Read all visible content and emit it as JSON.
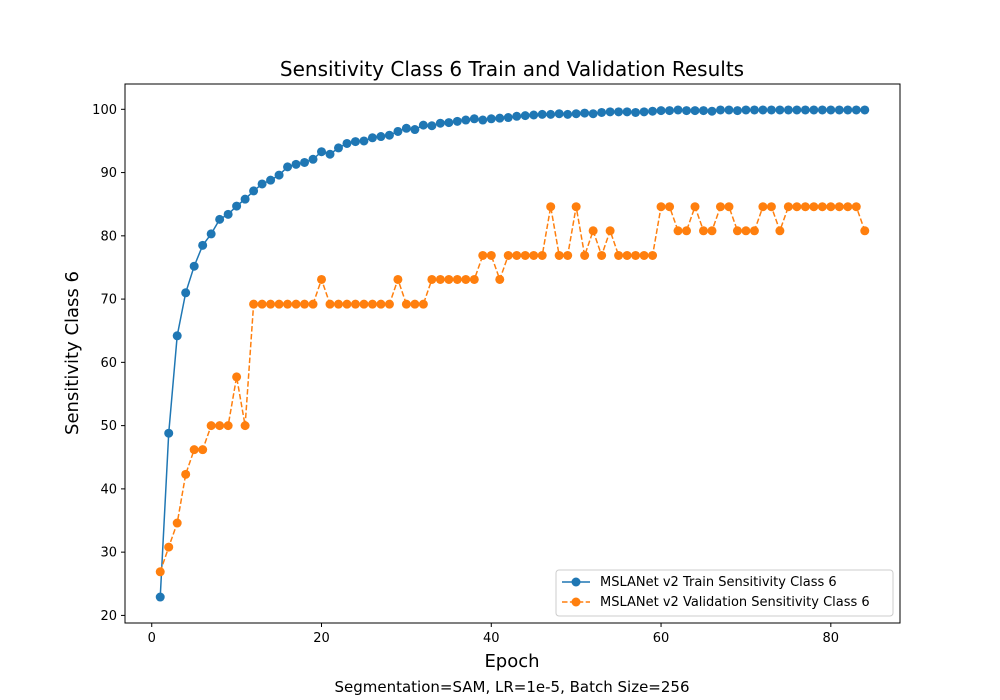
{
  "chart_data": {
    "type": "line",
    "title": "Sensitivity Class 6 Train and Validation Results",
    "xlabel": "Epoch",
    "ylabel": "Sensitivity Class 6",
    "caption": "Segmentation=SAM, LR=1e-5, Batch Size=256",
    "xlim": [
      -3.15,
      88.15
    ],
    "ylim": [
      18.8,
      104.0
    ],
    "xticks": [
      0,
      20,
      40,
      60,
      80
    ],
    "yticks": [
      20,
      30,
      40,
      50,
      60,
      70,
      80,
      90,
      100
    ],
    "grid": false,
    "legend_position": "lower-right",
    "x": [
      1,
      2,
      3,
      4,
      5,
      6,
      7,
      8,
      9,
      10,
      11,
      12,
      13,
      14,
      15,
      16,
      17,
      18,
      19,
      20,
      21,
      22,
      23,
      24,
      25,
      26,
      27,
      28,
      29,
      30,
      31,
      32,
      33,
      34,
      35,
      36,
      37,
      38,
      39,
      40,
      41,
      42,
      43,
      44,
      45,
      46,
      47,
      48,
      49,
      50,
      51,
      52,
      53,
      54,
      55,
      56,
      57,
      58,
      59,
      60,
      61,
      62,
      63,
      64,
      65,
      66,
      67,
      68,
      69,
      70,
      71,
      72,
      73,
      74,
      75,
      76,
      77,
      78,
      79,
      80,
      81,
      82,
      83,
      84
    ],
    "series": [
      {
        "name": "MSLANet v2 Train Sensitivity Class 6",
        "color": "#1f77b4",
        "linestyle": "solid",
        "values": [
          22.9,
          48.8,
          64.2,
          71.0,
          75.2,
          78.5,
          80.3,
          82.6,
          83.4,
          84.7,
          85.8,
          87.1,
          88.2,
          88.8,
          89.6,
          90.9,
          91.3,
          91.6,
          92.1,
          93.3,
          92.9,
          93.9,
          94.6,
          94.9,
          95.0,
          95.5,
          95.7,
          95.9,
          96.5,
          97.0,
          96.8,
          97.5,
          97.4,
          97.8,
          97.9,
          98.1,
          98.3,
          98.5,
          98.3,
          98.5,
          98.6,
          98.7,
          98.9,
          99.0,
          99.1,
          99.2,
          99.2,
          99.3,
          99.2,
          99.3,
          99.4,
          99.3,
          99.5,
          99.6,
          99.6,
          99.6,
          99.5,
          99.6,
          99.7,
          99.8,
          99.8,
          99.9,
          99.8,
          99.8,
          99.8,
          99.7,
          99.9,
          99.9,
          99.8,
          99.9,
          99.9,
          99.9,
          99.9,
          99.9,
          99.9,
          99.9,
          99.9,
          99.9,
          99.9,
          99.9,
          99.9,
          99.9,
          99.9,
          99.9
        ]
      },
      {
        "name": "MSLANet v2 Validation Sensitivity Class 6",
        "color": "#ff7f0e",
        "linestyle": "dashed",
        "values": [
          26.9,
          30.8,
          34.6,
          42.3,
          46.2,
          46.2,
          50.0,
          50.0,
          50.0,
          57.7,
          50.0,
          69.2,
          69.2,
          69.2,
          69.2,
          69.2,
          69.2,
          69.2,
          69.2,
          73.1,
          69.2,
          69.2,
          69.2,
          69.2,
          69.2,
          69.2,
          69.2,
          69.2,
          73.1,
          69.2,
          69.2,
          69.2,
          73.1,
          73.1,
          73.1,
          73.1,
          73.1,
          73.1,
          76.9,
          76.9,
          73.1,
          76.9,
          76.9,
          76.9,
          76.9,
          76.9,
          84.6,
          76.9,
          76.9,
          84.6,
          76.9,
          80.8,
          76.9,
          80.8,
          76.9,
          76.9,
          76.9,
          76.9,
          76.9,
          84.6,
          84.6,
          80.8,
          80.8,
          84.6,
          80.8,
          80.8,
          84.6,
          84.6,
          80.8,
          80.8,
          80.8,
          84.6,
          84.6,
          80.8,
          84.6,
          84.6,
          84.6,
          84.6,
          84.6,
          84.6,
          84.6,
          84.6,
          84.6,
          80.8
        ]
      }
    ]
  }
}
